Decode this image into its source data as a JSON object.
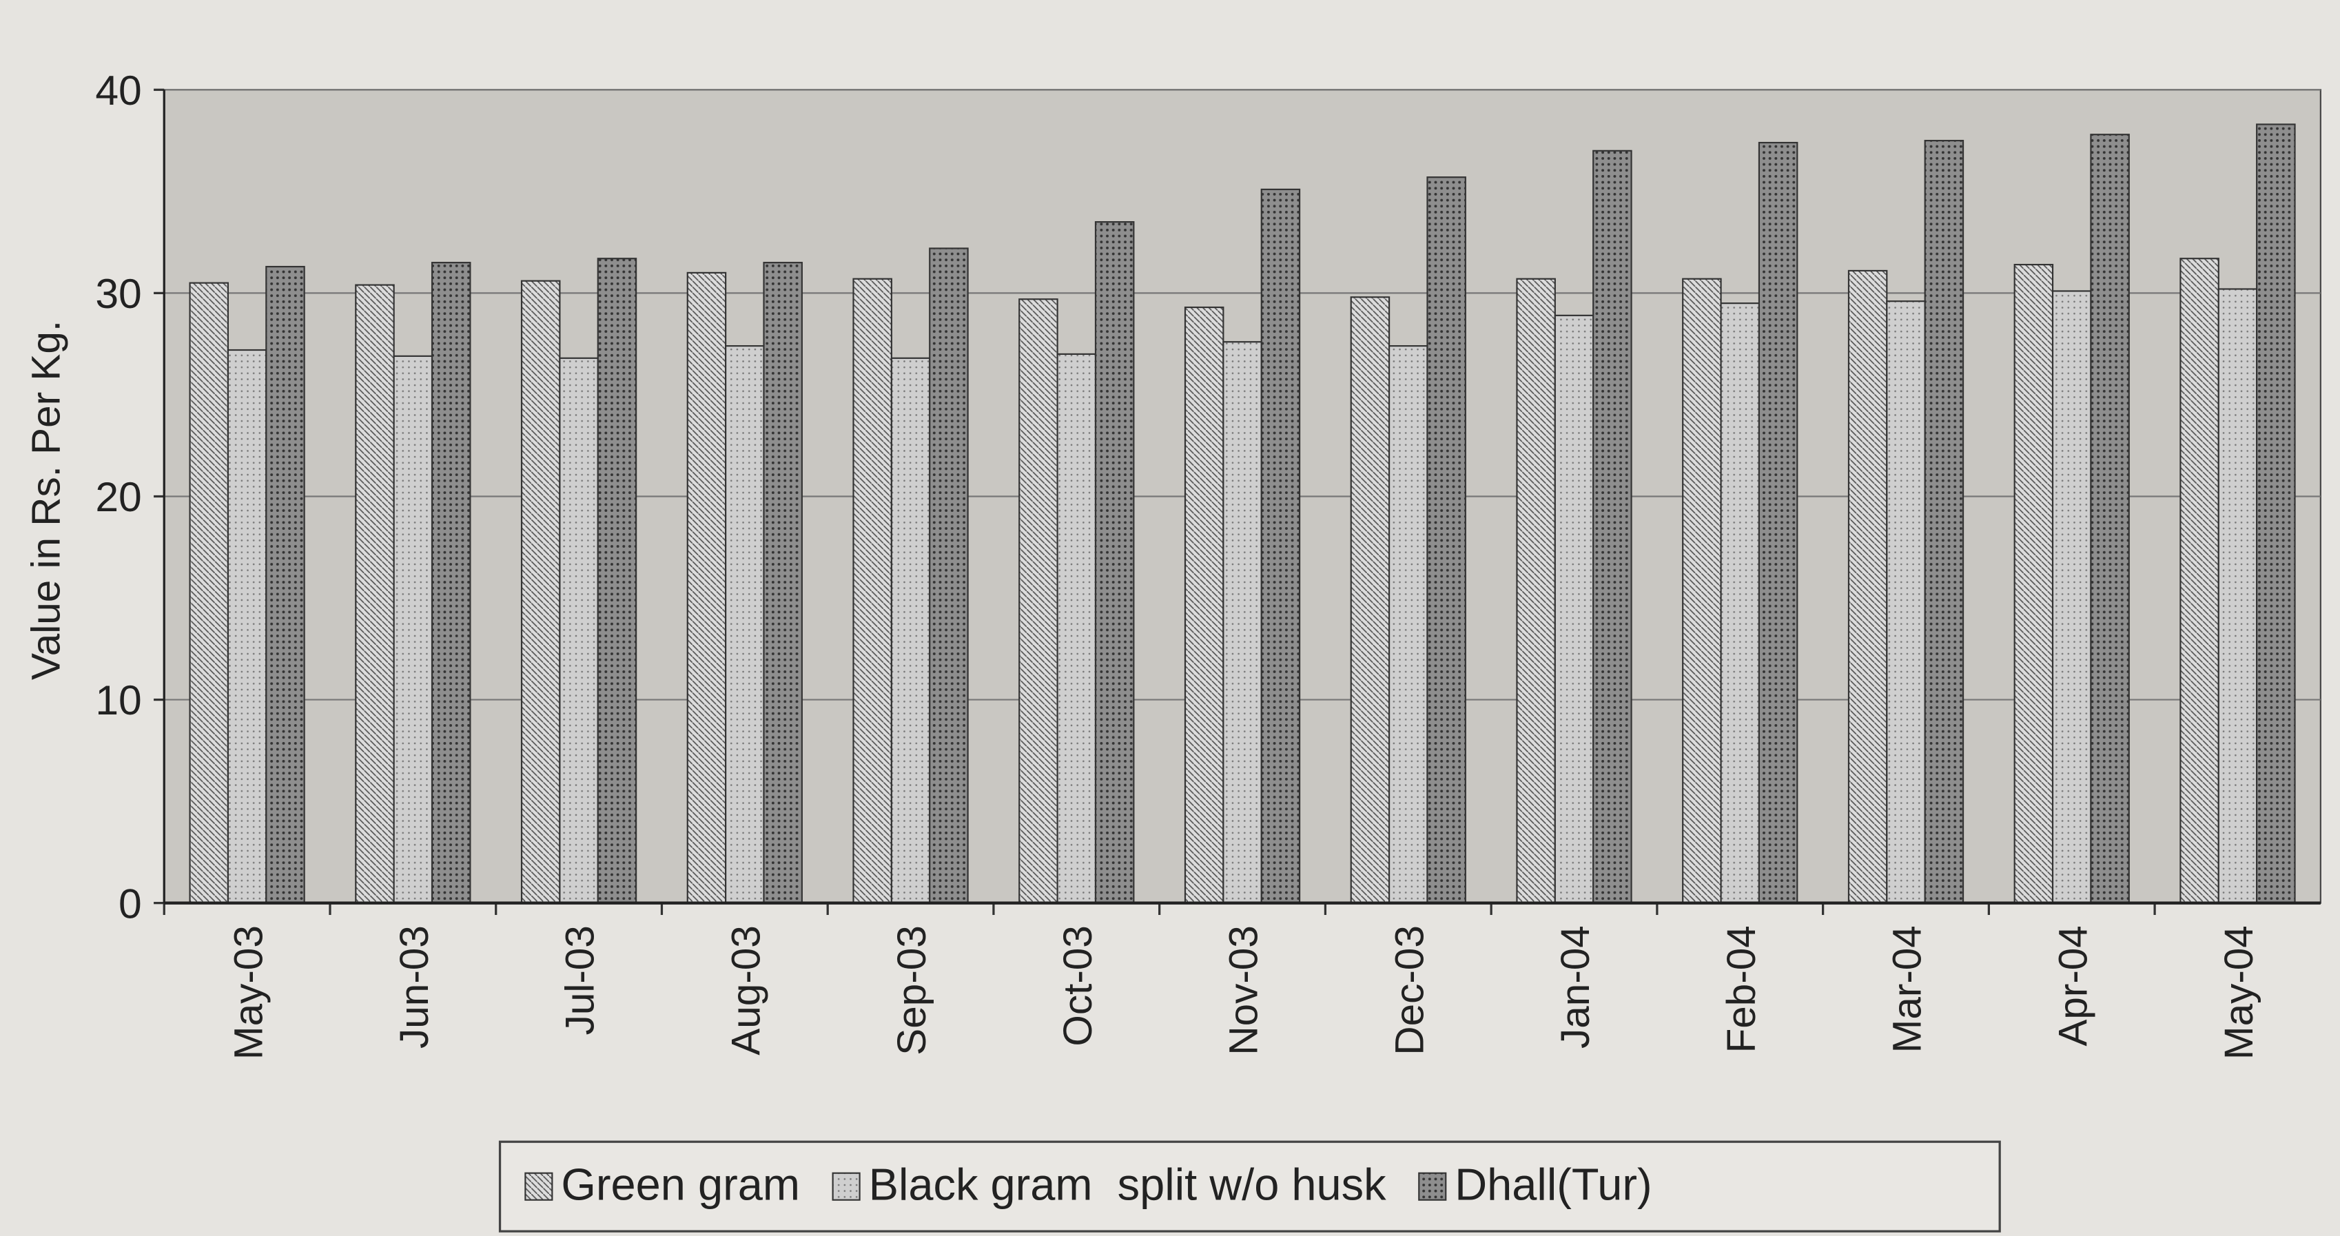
{
  "chart_data": {
    "type": "bar",
    "y_label": "Value in Rs. Per Kg.",
    "categories": [
      "May-03",
      "Jun-03",
      "Jul-03",
      "Aug-03",
      "Sep-03",
      "Oct-03",
      "Nov-03",
      "Dec-03",
      "Jan-04",
      "Feb-04",
      "Mar-04",
      "Apr-04",
      "May-04"
    ],
    "series": [
      {
        "name": "Green gram",
        "color": "#dcdcdc",
        "values": [
          30.5,
          30.4,
          30.6,
          31.0,
          30.7,
          29.7,
          29.3,
          29.8,
          30.7,
          30.7,
          31.1,
          31.4,
          31.7
        ]
      },
      {
        "name": "Black gram  split w/o husk",
        "color": "#cfcfcf",
        "values": [
          27.2,
          26.9,
          26.8,
          27.4,
          26.8,
          27.0,
          27.6,
          27.4,
          28.9,
          29.5,
          29.6,
          30.1,
          30.2
        ]
      },
      {
        "name": "Dhall(Tur)",
        "color": "#8e8e8e",
        "values": [
          31.3,
          31.5,
          31.7,
          31.5,
          32.2,
          33.5,
          35.1,
          35.7,
          37.0,
          37.4,
          37.5,
          37.8,
          38.3
        ]
      }
    ],
    "ylim": [
      0,
      40
    ],
    "yticks": [
      0,
      10,
      20,
      30,
      40
    ],
    "grid": true,
    "legend": "bottom"
  }
}
